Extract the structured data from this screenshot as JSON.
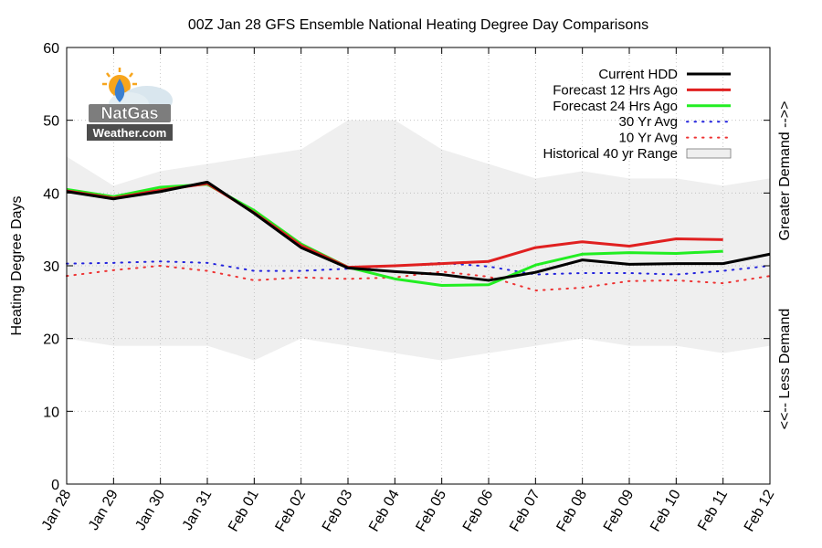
{
  "chart_data": {
    "type": "line",
    "title": "00Z Jan 28 GFS Ensemble National Heating Degree Day Comparisons",
    "xlabel": "",
    "ylabel": "Heating Degree Days",
    "ylim": [
      0,
      60
    ],
    "yticks": [
      0,
      10,
      20,
      30,
      40,
      50,
      60
    ],
    "categories": [
      "Jan 28",
      "Jan 29",
      "Jan 30",
      "Jan 31",
      "Feb 01",
      "Feb 02",
      "Feb 03",
      "Feb 04",
      "Feb 05",
      "Feb 06",
      "Feb 07",
      "Feb 08",
      "Feb 09",
      "Feb 10",
      "Feb 11",
      "Feb 12"
    ],
    "grid": true,
    "legend_position": "top-right",
    "right_annotations": {
      "upper": "Greater Demand -->>",
      "lower": "<<-- Less Demand"
    },
    "logo": {
      "line1": "NatGas",
      "line2": "Weather.com"
    },
    "range": {
      "name": "Historical 40 yr Range",
      "color": "#efefef",
      "upper": [
        45,
        41,
        43,
        44,
        45,
        46,
        50,
        50,
        46,
        44,
        42,
        43,
        42,
        42,
        41,
        42
      ],
      "lower": [
        20,
        19,
        19,
        19,
        17,
        20,
        19,
        18,
        17,
        18,
        19,
        20,
        19,
        19,
        18,
        19
      ]
    },
    "series": [
      {
        "name": "Current HDD",
        "color": "#000000",
        "style": "solid",
        "values": [
          40.2,
          39.2,
          40.2,
          41.5,
          37.2,
          32.5,
          29.7,
          29.2,
          28.8,
          28.0,
          29.1,
          30.8,
          30.2,
          30.3,
          30.3,
          31.6
        ]
      },
      {
        "name": "Forecast 12 Hrs Ago",
        "color": "#e02020",
        "style": "solid",
        "values": [
          40.3,
          39.3,
          40.4,
          41.3,
          37.3,
          32.8,
          29.8,
          30.0,
          30.3,
          30.6,
          32.5,
          33.3,
          32.7,
          33.7,
          33.6,
          null
        ]
      },
      {
        "name": "Forecast 24 Hrs Ago",
        "color": "#22ee22",
        "style": "solid",
        "values": [
          40.5,
          39.5,
          40.8,
          41.2,
          37.6,
          33.0,
          29.8,
          28.2,
          27.3,
          27.4,
          30.1,
          31.6,
          31.8,
          31.7,
          32.0,
          null
        ]
      },
      {
        "name": "30 Yr Avg",
        "color": "#2222dd",
        "style": "dotted",
        "values": [
          30.3,
          30.4,
          30.6,
          30.4,
          29.3,
          29.3,
          29.6,
          30.0,
          30.4,
          29.9,
          28.8,
          29.0,
          29.0,
          28.8,
          29.3,
          30.0
        ]
      },
      {
        "name": "10 Yr Avg",
        "color": "#ee3333",
        "style": "dotted",
        "values": [
          28.6,
          29.4,
          30.0,
          29.3,
          28.0,
          28.4,
          28.2,
          28.4,
          29.2,
          28.5,
          26.6,
          27.0,
          27.9,
          28.0,
          27.6,
          28.6
        ]
      }
    ]
  }
}
